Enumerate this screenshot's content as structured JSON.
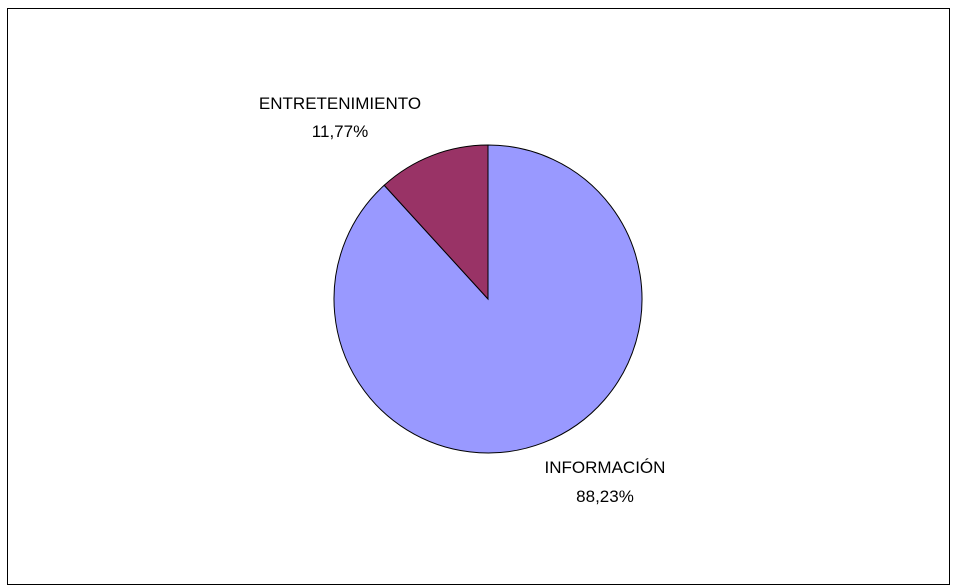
{
  "chart_data": {
    "type": "pie",
    "slices": [
      {
        "label": "INFORMACIÓN",
        "percent_label": "88,23%",
        "value": 88.23,
        "color": "#9999ff"
      },
      {
        "label": "ENTRETENIMIENTO",
        "percent_label": "11,77%",
        "value": 11.77,
        "color": "#993366"
      }
    ],
    "start": "top",
    "direction": "clockwise",
    "outline_color": "#000000"
  }
}
